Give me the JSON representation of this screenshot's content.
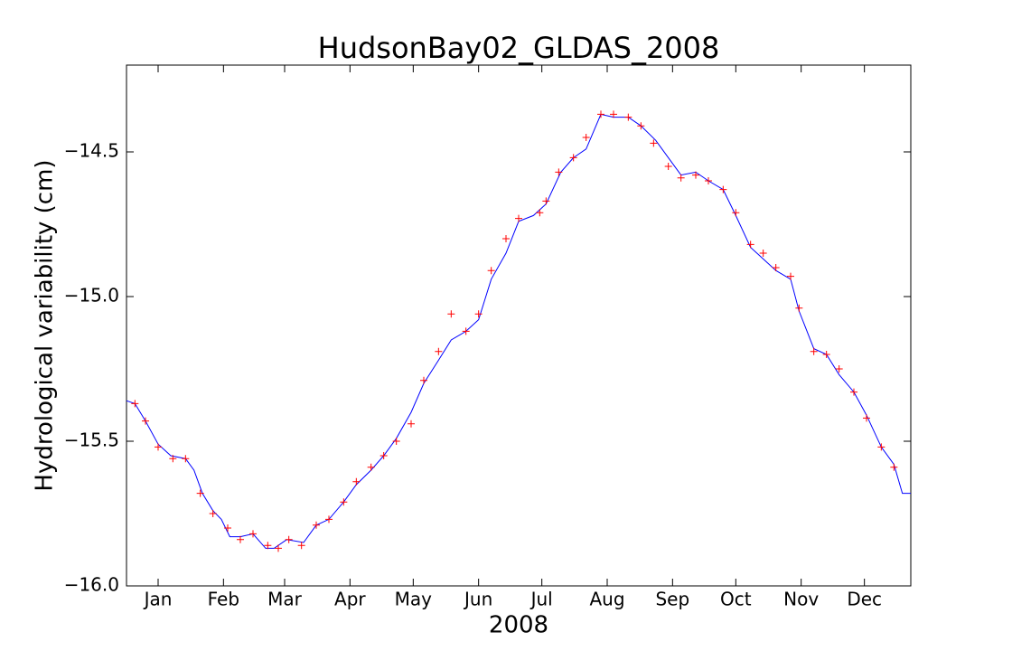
{
  "chart_data": {
    "type": "line",
    "title": "HudsonBay02_GLDAS_2008",
    "x_label": "2008",
    "y_label": "Hydrological variability (cm)",
    "xlim": [
      0,
      372
    ],
    "xticks": [
      {
        "value": 15,
        "label": "Jan"
      },
      {
        "value": 46,
        "label": "Feb"
      },
      {
        "value": 75,
        "label": "Mar"
      },
      {
        "value": 106,
        "label": "Apr"
      },
      {
        "value": 136,
        "label": "May"
      },
      {
        "value": 167,
        "label": "Jun"
      },
      {
        "value": 197,
        "label": "Jul"
      },
      {
        "value": 228,
        "label": "Aug"
      },
      {
        "value": 259,
        "label": "Sep"
      },
      {
        "value": 289,
        "label": "Oct"
      },
      {
        "value": 320,
        "label": "Nov"
      },
      {
        "value": 350,
        "label": "Dec"
      }
    ],
    "ylim": [
      -16,
      -14.2
    ],
    "yticks": [
      {
        "value": -16,
        "label": "−16.0"
      },
      {
        "value": -15.5,
        "label": "−15.5"
      },
      {
        "value": -15,
        "label": "−15.0"
      },
      {
        "value": -14.5,
        "label": "−14.5"
      }
    ],
    "grid": false,
    "series": [
      {
        "color": "#0000ff",
        "style": "line",
        "x": [
          0,
          4,
          9,
          15,
          21,
          28,
          32,
          36,
          41,
          45,
          49,
          54,
          60,
          66,
          70,
          76,
          84,
          90,
          96,
          103,
          109,
          116,
          122,
          128,
          135,
          141,
          148,
          154,
          161,
          167,
          173,
          180,
          186,
          193,
          199,
          206,
          212,
          218,
          225,
          231,
          238,
          244,
          251,
          257,
          263,
          270,
          276,
          283,
          289,
          296,
          302,
          308,
          315,
          319,
          326,
          332,
          338,
          345,
          351,
          358,
          364,
          368,
          372
        ],
        "values": [
          -15.36,
          -15.37,
          -15.43,
          -15.51,
          -15.55,
          -15.56,
          -15.6,
          -15.68,
          -15.74,
          -15.77,
          -15.83,
          -15.83,
          -15.82,
          -15.87,
          -15.87,
          -15.84,
          -15.85,
          -15.79,
          -15.77,
          -15.71,
          -15.65,
          -15.6,
          -15.55,
          -15.49,
          -15.4,
          -15.3,
          -15.22,
          -15.15,
          -15.12,
          -15.08,
          -14.94,
          -14.85,
          -14.74,
          -14.72,
          -14.68,
          -14.57,
          -14.52,
          -14.49,
          -14.37,
          -14.38,
          -14.38,
          -14.41,
          -14.46,
          -14.52,
          -14.58,
          -14.57,
          -14.6,
          -14.63,
          -14.72,
          -14.83,
          -14.87,
          -14.91,
          -14.94,
          -15.05,
          -15.18,
          -15.2,
          -15.27,
          -15.33,
          -15.41,
          -15.52,
          -15.58,
          -15.68,
          -15.68
        ]
      },
      {
        "color": "#ff0000",
        "style": "plus",
        "x": [
          4,
          9,
          15,
          22,
          28,
          35,
          41,
          48,
          54,
          60,
          67,
          72,
          77,
          83,
          90,
          96,
          103,
          109,
          116,
          122,
          128,
          135,
          141,
          148,
          154,
          161,
          167,
          173,
          180,
          186,
          196,
          199,
          205,
          212,
          218,
          225,
          231,
          238,
          244,
          250,
          257,
          263,
          270,
          276,
          283,
          289,
          296,
          302,
          308,
          315,
          319,
          326,
          332,
          338,
          345,
          351,
          358,
          364
        ],
        "values": [
          -15.37,
          -15.43,
          -15.52,
          -15.56,
          -15.56,
          -15.68,
          -15.75,
          -15.8,
          -15.84,
          -15.82,
          -15.86,
          -15.87,
          -15.84,
          -15.86,
          -15.79,
          -15.77,
          -15.71,
          -15.64,
          -15.59,
          -15.55,
          -15.5,
          -15.44,
          -15.29,
          -15.19,
          -15.06,
          -15.12,
          -15.06,
          -14.91,
          -14.8,
          -14.73,
          -14.71,
          -14.67,
          -14.57,
          -14.52,
          -14.45,
          -14.37,
          -14.37,
          -14.38,
          -14.41,
          -14.47,
          -14.55,
          -14.59,
          -14.58,
          -14.6,
          -14.63,
          -14.71,
          -14.82,
          -14.85,
          -14.9,
          -14.93,
          -15.04,
          -15.19,
          -15.2,
          -15.25,
          -15.33,
          -15.42,
          -15.52,
          -15.59
        ]
      }
    ]
  }
}
